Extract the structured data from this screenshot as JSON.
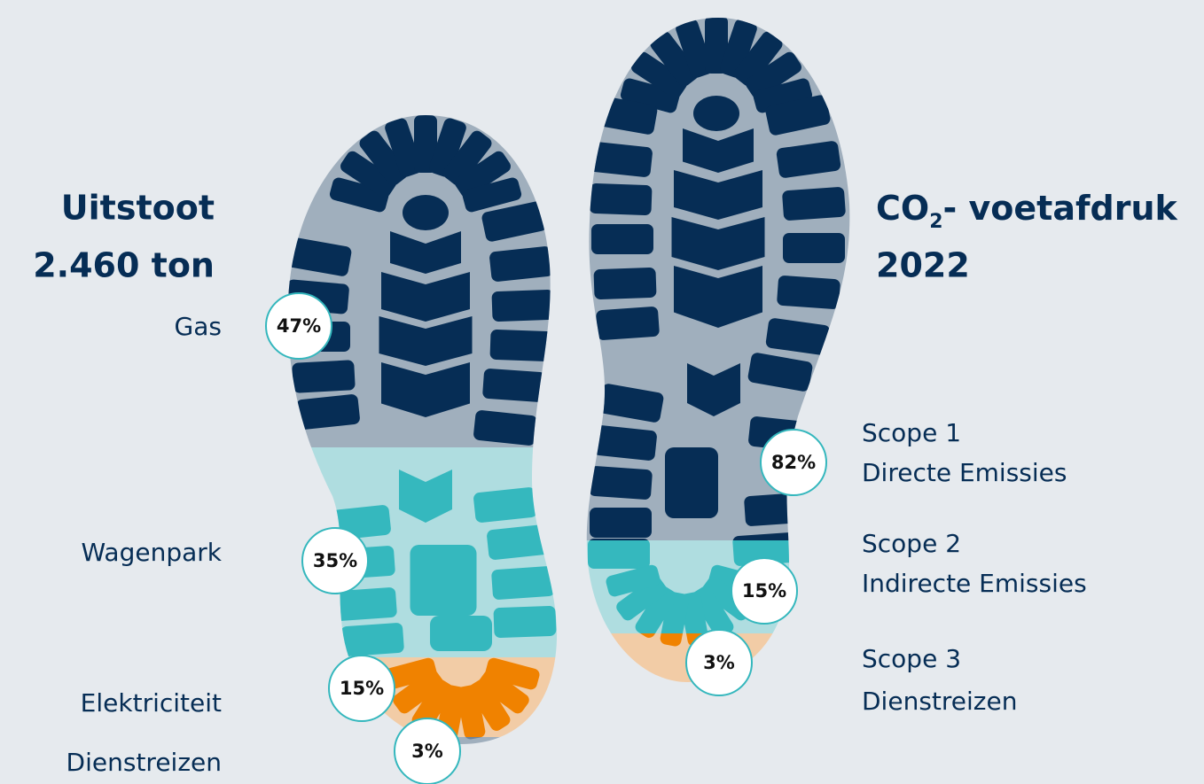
{
  "left": {
    "heading": [
      "Uitstoot",
      "2.460 ton"
    ],
    "items": [
      {
        "label": "Gas",
        "share": "47%"
      },
      {
        "label": "Wagenpark",
        "share": "35%"
      },
      {
        "label": "Elektriciteit",
        "share": "15%"
      },
      {
        "label": "Dienstreizen",
        "share": "3%"
      }
    ]
  },
  "right": {
    "heading": {
      "prefix": "CO",
      "subscript": "2",
      "suffix": "- voetafdruk",
      "line2": "2022"
    },
    "items": [
      {
        "label": [
          "Scope 1",
          "Directe Emissies"
        ],
        "share": "82%"
      },
      {
        "label": [
          "Scope 2",
          "Indirecte Emissies"
        ],
        "share": "15%"
      },
      {
        "label": [
          "Scope 3",
          "Dienstreizen"
        ],
        "share": "3%"
      }
    ]
  }
}
